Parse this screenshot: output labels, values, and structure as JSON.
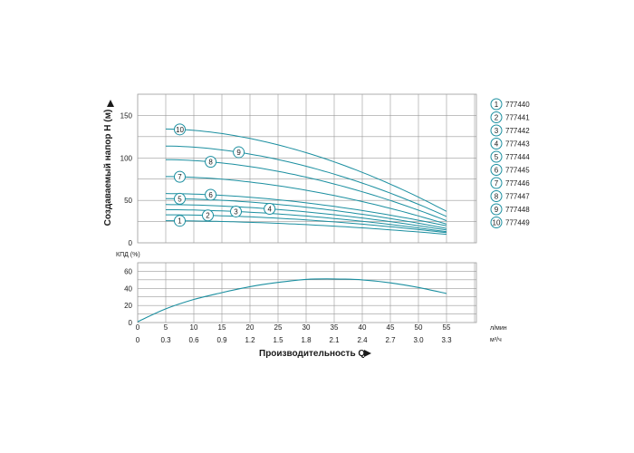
{
  "colors": {
    "curve": "#1b8fa0",
    "grid": "#9a9a9a",
    "badge_stroke": "#1b8fa0",
    "arrow": "#1a1a1a"
  },
  "chart_data": [
    {
      "type": "line",
      "ylabel": "Создаваемый напор H (м)",
      "ylim": [
        0,
        175
      ],
      "yticks": [
        0,
        50,
        100,
        150
      ],
      "xlim": [
        0,
        55
      ],
      "grid": true,
      "series": [
        {
          "name": "777440",
          "x": [
            5,
            55
          ],
          "values": [
            26,
            10
          ]
        },
        {
          "name": "777441",
          "x": [
            5,
            55
          ],
          "values": [
            33,
            12
          ]
        },
        {
          "name": "777442",
          "x": [
            5,
            55
          ],
          "values": [
            39,
            13
          ]
        },
        {
          "name": "777443",
          "x": [
            5,
            55
          ],
          "values": [
            45,
            15
          ]
        },
        {
          "name": "777444",
          "x": [
            5,
            55
          ],
          "values": [
            52,
            17
          ]
        },
        {
          "name": "777445",
          "x": [
            5,
            55
          ],
          "values": [
            58,
            20
          ]
        },
        {
          "name": "777446",
          "x": [
            5,
            55
          ],
          "values": [
            78,
            22
          ]
        },
        {
          "name": "777447",
          "x": [
            5,
            55
          ],
          "values": [
            98,
            26
          ]
        },
        {
          "name": "777448",
          "x": [
            5,
            55
          ],
          "values": [
            114,
            31
          ]
        },
        {
          "name": "777449",
          "x": [
            5,
            55
          ],
          "values": [
            134,
            37
          ]
        }
      ],
      "legend": {
        "position": "right",
        "entries": [
          "777440",
          "777441",
          "777442",
          "777443",
          "777444",
          "777445",
          "777446",
          "777447",
          "777448",
          "777449"
        ]
      },
      "curve_markers": [
        {
          "num": "1",
          "x": 7.5
        },
        {
          "num": "2",
          "x": 12.5
        },
        {
          "num": "3",
          "x": 17.5
        },
        {
          "num": "4",
          "x": 23.5
        },
        {
          "num": "5",
          "x": 7.5
        },
        {
          "num": "6",
          "x": 13
        },
        {
          "num": "7",
          "x": 7.5
        },
        {
          "num": "8",
          "x": 13
        },
        {
          "num": "9",
          "x": 18
        },
        {
          "num": "10",
          "x": 7.5
        }
      ]
    },
    {
      "type": "line",
      "ylabel": "КПД (%)",
      "ylim": [
        0,
        70
      ],
      "yticks": [
        0,
        20,
        40,
        60
      ],
      "xlim": [
        0,
        60
      ],
      "xticks_lpm": [
        "0",
        "5",
        "10",
        "15",
        "20",
        "25",
        "30",
        "35",
        "40",
        "45",
        "50",
        "55"
      ],
      "xticks_m3h": [
        "0",
        "0.3",
        "0.6",
        "0.9",
        "1.2",
        "1.5",
        "1.8",
        "2.1",
        "2.4",
        "2.7",
        "3.0",
        "3.3"
      ],
      "xlabel": "Производительность Q",
      "unit_lpm": "л/мин",
      "unit_m3h": "м³/ч",
      "grid": true,
      "series": [
        {
          "name": "КПД",
          "x": [
            0,
            5,
            10,
            15,
            20,
            25,
            30,
            35,
            40,
            45,
            50,
            55
          ],
          "values": [
            1,
            16,
            27,
            35,
            42,
            47,
            50.5,
            51,
            50,
            46.5,
            41,
            34
          ]
        }
      ]
    }
  ]
}
